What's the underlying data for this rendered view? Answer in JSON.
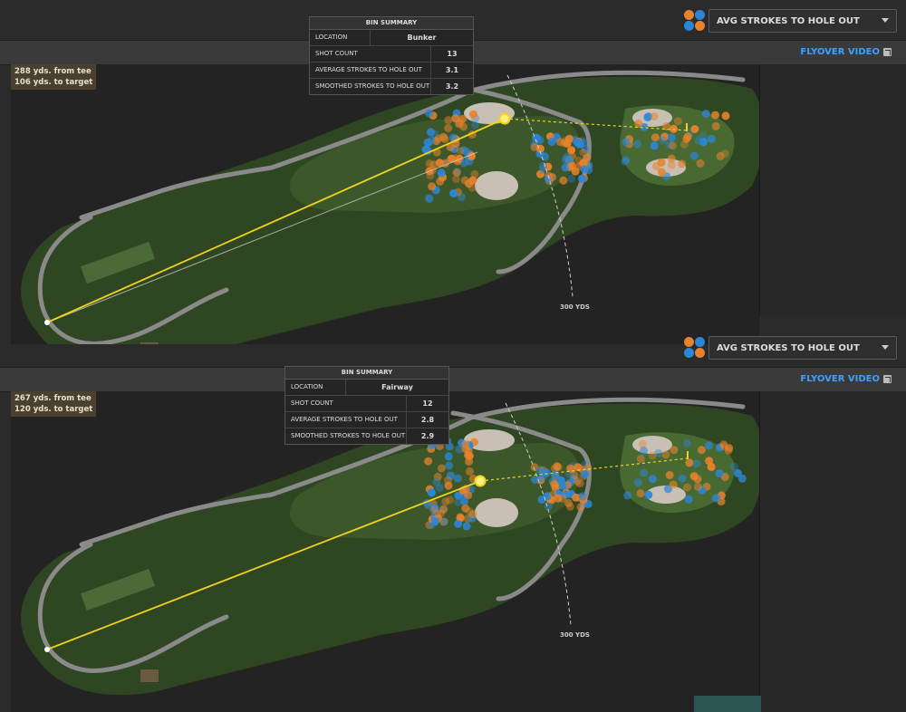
{
  "colors": {
    "blue_dot": "#2c86d6",
    "orange_dot": "#e8822c",
    "fairway": "#3e5a2c",
    "rough": "#2f4622",
    "bunker": "#c8c0b4",
    "cart_path": "#8a8a8a",
    "aim_line": "#f2d21e",
    "accent_link": "#3ea0ff"
  },
  "panels": [
    {
      "metric_label": "AVG STROKES TO HOLE OUT",
      "flyover_label": "FLYOVER VIDEO",
      "distance": {
        "from_tee": "288 yds. from tee",
        "to_target": "106 yds. to target"
      },
      "bin_summary": {
        "title": "BIN SUMMARY",
        "rows": [
          {
            "label": "LOCATION",
            "value": "Bunker"
          },
          {
            "label": "SHOT COUNT",
            "value": "13"
          },
          {
            "label": "AVERAGE STROKES TO HOLE OUT",
            "value": "3.1"
          },
          {
            "label": "SMOOTHED STROKES TO HOLE OUT",
            "value": "3.2"
          }
        ]
      },
      "yardage_marker": "300 YDS"
    },
    {
      "metric_label": "AVG STROKES TO HOLE OUT",
      "flyover_label": "FLYOVER VIDEO",
      "distance": {
        "from_tee": "267 yds. from tee",
        "to_target": "120 yds. to target"
      },
      "bin_summary": {
        "title": "BIN SUMMARY",
        "rows": [
          {
            "label": "LOCATION",
            "value": "Fairway"
          },
          {
            "label": "SHOT COUNT",
            "value": "12"
          },
          {
            "label": "AVERAGE STROKES TO HOLE OUT",
            "value": "2.8"
          },
          {
            "label": "SMOOTHED STROKES TO HOLE OUT",
            "value": "2.9"
          }
        ]
      },
      "yardage_marker": "300 YDS"
    }
  ]
}
